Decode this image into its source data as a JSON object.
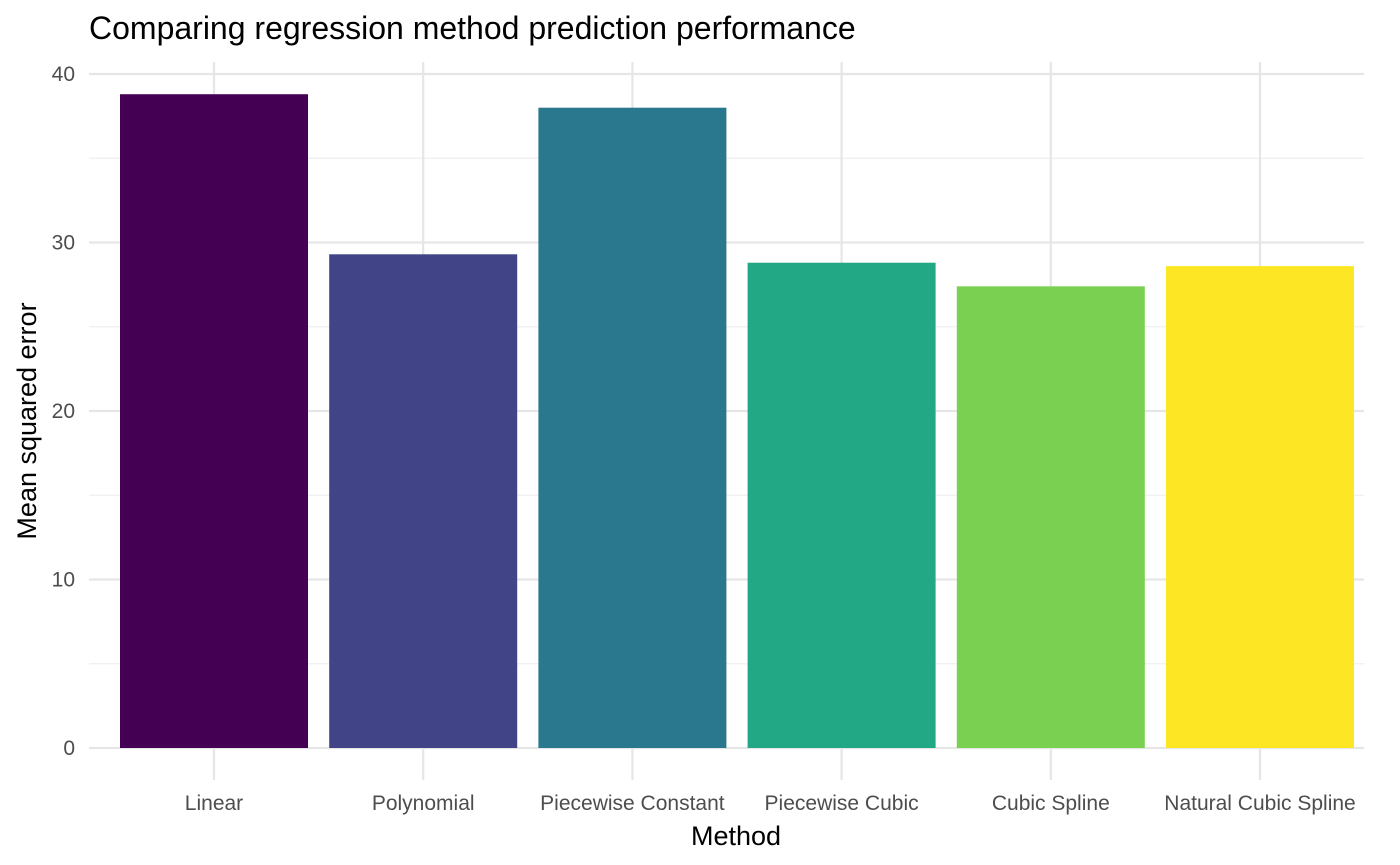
{
  "chart_data": {
    "type": "bar",
    "title": "Comparing regression method prediction performance",
    "xlabel": "Method",
    "ylabel": "Mean squared error",
    "categories": [
      "Linear",
      "Polynomial",
      "Piecewise Constant",
      "Piecewise Cubic",
      "Cubic Spline",
      "Natural Cubic Spline"
    ],
    "values": [
      38.8,
      29.3,
      38.0,
      28.8,
      27.4,
      28.6
    ],
    "colors": [
      "#440154",
      "#414487",
      "#2A788E",
      "#22A884",
      "#7AD151",
      "#FDE725"
    ],
    "ylim": [
      0,
      40
    ],
    "yticks": [
      0,
      10,
      20,
      30,
      40
    ],
    "grid": true,
    "legend": "none"
  }
}
